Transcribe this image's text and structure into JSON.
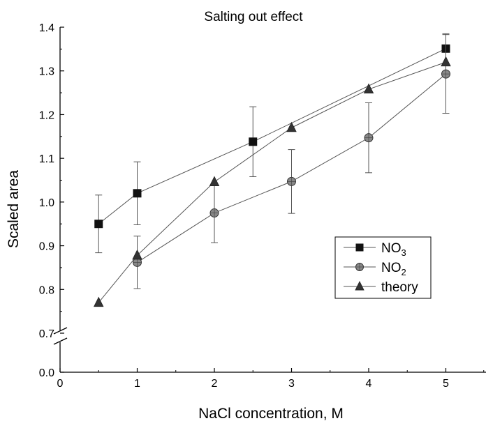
{
  "chart_data": {
    "type": "line",
    "title": "Salting out effect",
    "xlabel": "NaCl concentration, M",
    "ylabel": "Scaled area",
    "xlim": [
      0,
      5.5
    ],
    "ylim": [
      0.7,
      1.4
    ],
    "axis_break": {
      "from": 0.0,
      "to": 0.7
    },
    "x_ticks": [
      "0",
      "1",
      "2",
      "3",
      "4",
      "5"
    ],
    "y_ticks": [
      "0.0",
      "0.7",
      "0.8",
      "0.9",
      "1.0",
      "1.1",
      "1.2",
      "1.3",
      "1.4"
    ],
    "legend_position": "bottom-right",
    "series": [
      {
        "name": "NO3",
        "name_main": "NO",
        "name_sub": "3",
        "marker": "square",
        "color": "#111111",
        "x": [
          0.5,
          1,
          2.5,
          5
        ],
        "y": [
          0.95,
          1.02,
          1.138,
          1.351
        ],
        "yerr": [
          0.066,
          0.072,
          0.08,
          0.034
        ]
      },
      {
        "name": "NO2",
        "name_main": "NO",
        "name_sub": "2",
        "marker": "circle",
        "color": "#555555",
        "x": [
          1,
          2,
          3,
          4,
          5
        ],
        "y": [
          0.862,
          0.975,
          1.047,
          1.147,
          1.293
        ],
        "yerr": [
          0.06,
          0.068,
          0.073,
          0.08,
          0.09
        ]
      },
      {
        "name": "theory",
        "name_main": "theory",
        "name_sub": "",
        "marker": "triangle",
        "color": "#333333",
        "x": [
          0.5,
          1,
          2,
          3,
          4,
          5
        ],
        "y": [
          0.77,
          0.878,
          1.046,
          1.17,
          1.258,
          1.32
        ],
        "yerr": []
      }
    ]
  }
}
